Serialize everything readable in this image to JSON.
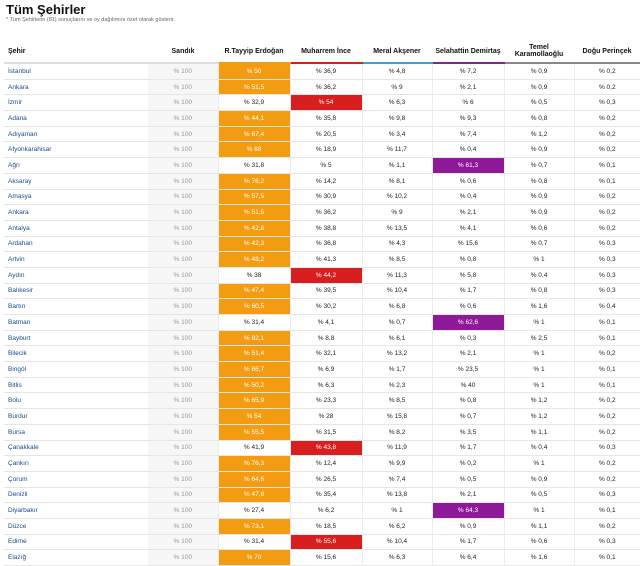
{
  "page": {
    "title": "Tüm Şehirler",
    "subtitle": "* Tüm Şehirlerin (81) sonuçlarını ve oy dağılımını özet olarak gösterir."
  },
  "columns": [
    "Şehir",
    "Sandık",
    "R.Tayyip Erdoğan",
    "Muharrem İnce",
    "Meral Akşener",
    "Selahattin Demirtaş",
    "Temel Karamollaoğlu",
    "Doğu Perinçek"
  ],
  "colors": {
    "erdogan": "#f39c12",
    "ince": "#d81e1e",
    "demirtas": "#8e1a9a",
    "aksener": "#37a3dc"
  },
  "rows": [
    {
      "city": "İstanbul",
      "sandik": "% 100",
      "rte": "% 50",
      "mi": "% 36,9",
      "ma": "% 4,8",
      "sd": "% 7,2",
      "tk": "% 0,9",
      "dp": "% 0,2",
      "win": "rte"
    },
    {
      "city": "Ankara",
      "sandik": "% 100",
      "rte": "% 51,5",
      "mi": "% 36,2",
      "ma": "% 9",
      "sd": "% 2,1",
      "tk": "% 0,9",
      "dp": "% 0,2",
      "win": "rte"
    },
    {
      "city": "İzmir",
      "sandik": "% 100",
      "rte": "% 32,9",
      "mi": "% 54",
      "ma": "% 6,3",
      "sd": "% 6",
      "tk": "% 0,5",
      "dp": "% 0,3",
      "win": "mi"
    },
    {
      "city": "Adana",
      "sandik": "% 100",
      "rte": "% 44,1",
      "mi": "% 35,8",
      "ma": "% 9,8",
      "sd": "% 9,3",
      "tk": "% 0,8",
      "dp": "% 0,2",
      "win": "rte"
    },
    {
      "city": "Adıyaman",
      "sandik": "% 100",
      "rte": "% 67,4",
      "mi": "% 20,5",
      "ma": "% 3,4",
      "sd": "% 7,4",
      "tk": "% 1,2",
      "dp": "% 0,2",
      "win": "rte"
    },
    {
      "city": "Afyonkarahisar",
      "sandik": "% 100",
      "rte": "% 68",
      "mi": "% 18,9",
      "ma": "% 11,7",
      "sd": "% 0,4",
      "tk": "% 0,9",
      "dp": "% 0,2",
      "win": "rte"
    },
    {
      "city": "Ağrı",
      "sandik": "% 100",
      "rte": "% 31,8",
      "mi": "% 5",
      "ma": "% 1,1",
      "sd": "% 61,3",
      "tk": "% 0,7",
      "dp": "% 0,1",
      "win": "sd"
    },
    {
      "city": "Aksaray",
      "sandik": "% 100",
      "rte": "% 76,2",
      "mi": "% 14,2",
      "ma": "% 8,1",
      "sd": "% 0,6",
      "tk": "% 0,8",
      "dp": "% 0,1",
      "win": "rte"
    },
    {
      "city": "Amasya",
      "sandik": "% 100",
      "rte": "% 57,5",
      "mi": "% 30,9",
      "ma": "% 10,2",
      "sd": "% 0,4",
      "tk": "% 0,9",
      "dp": "% 0,2",
      "win": "rte"
    },
    {
      "city": "Ankara",
      "sandik": "% 100",
      "rte": "% 51,5",
      "mi": "% 36,2",
      "ma": "% 9",
      "sd": "% 2,1",
      "tk": "% 0,9",
      "dp": "% 0,2",
      "win": "rte"
    },
    {
      "city": "Antalya",
      "sandik": "% 100",
      "rte": "% 42,8",
      "mi": "% 38,8",
      "ma": "% 13,5",
      "sd": "% 4,1",
      "tk": "% 0,6",
      "dp": "% 0,2",
      "win": "rte"
    },
    {
      "city": "Ardahan",
      "sandik": "% 100",
      "rte": "% 42,3",
      "mi": "% 36,8",
      "ma": "% 4,3",
      "sd": "% 15,6",
      "tk": "% 0,7",
      "dp": "% 0,3",
      "win": "rte"
    },
    {
      "city": "Artvin",
      "sandik": "% 100",
      "rte": "% 48,2",
      "mi": "% 41,3",
      "ma": "% 8,5",
      "sd": "% 0,8",
      "tk": "% 1",
      "dp": "% 0,3",
      "win": "rte"
    },
    {
      "city": "Aydın",
      "sandik": "% 100",
      "rte": "% 38",
      "mi": "% 44,2",
      "ma": "% 11,3",
      "sd": "% 5,8",
      "tk": "% 0,4",
      "dp": "% 0,3",
      "win": "mi"
    },
    {
      "city": "Balıkesir",
      "sandik": "% 100",
      "rte": "% 47,4",
      "mi": "% 39,5",
      "ma": "% 10,4",
      "sd": "% 1,7",
      "tk": "% 0,8",
      "dp": "% 0,3",
      "win": "rte"
    },
    {
      "city": "Bartın",
      "sandik": "% 100",
      "rte": "% 60,5",
      "mi": "% 30,2",
      "ma": "% 6,8",
      "sd": "% 0,6",
      "tk": "% 1,6",
      "dp": "% 0,4",
      "win": "rte"
    },
    {
      "city": "Batman",
      "sandik": "% 100",
      "rte": "% 31,4",
      "mi": "% 4,1",
      "ma": "% 0,7",
      "sd": "% 62,6",
      "tk": "% 1",
      "dp": "% 0,1",
      "win": "sd"
    },
    {
      "city": "Bayburt",
      "sandik": "% 100",
      "rte": "% 82,1",
      "mi": "% 8,8",
      "ma": "% 6,1",
      "sd": "% 0,3",
      "tk": "% 2,5",
      "dp": "% 0,1",
      "win": "rte"
    },
    {
      "city": "Bilecik",
      "sandik": "% 100",
      "rte": "% 51,4",
      "mi": "% 32,1",
      "ma": "% 13,2",
      "sd": "% 2,1",
      "tk": "% 1",
      "dp": "% 0,2",
      "win": "rte"
    },
    {
      "city": "Bingöl",
      "sandik": "% 100",
      "rte": "% 66,7",
      "mi": "% 6,9",
      "ma": "% 1,7",
      "sd": "% 23,5",
      "tk": "% 1",
      "dp": "% 0,1",
      "win": "rte"
    },
    {
      "city": "Bitlis",
      "sandik": "% 100",
      "rte": "% 50,2",
      "mi": "% 6,3",
      "ma": "% 2,3",
      "sd": "% 40",
      "tk": "% 1",
      "dp": "% 0,1",
      "win": "rte"
    },
    {
      "city": "Bolu",
      "sandik": "% 100",
      "rte": "% 65,9",
      "mi": "% 23,3",
      "ma": "% 8,5",
      "sd": "% 0,8",
      "tk": "% 1,2",
      "dp": "% 0,2",
      "win": "rte"
    },
    {
      "city": "Burdur",
      "sandik": "% 100",
      "rte": "% 54",
      "mi": "% 28",
      "ma": "% 15,8",
      "sd": "% 0,7",
      "tk": "% 1,2",
      "dp": "% 0,2",
      "win": "rte"
    },
    {
      "city": "Bursa",
      "sandik": "% 100",
      "rte": "% 55,5",
      "mi": "% 31,5",
      "ma": "% 8,2",
      "sd": "% 3,5",
      "tk": "% 1,1",
      "dp": "% 0,2",
      "win": "rte"
    },
    {
      "city": "Çanakkale",
      "sandik": "% 100",
      "rte": "% 41,9",
      "mi": "% 43,8",
      "ma": "% 11,9",
      "sd": "% 1,7",
      "tk": "% 0,4",
      "dp": "% 0,3",
      "win": "mi"
    },
    {
      "city": "Çankırı",
      "sandik": "% 100",
      "rte": "% 76,3",
      "mi": "% 12,4",
      "ma": "% 9,9",
      "sd": "% 0,2",
      "tk": "% 1",
      "dp": "% 0,2",
      "win": "rte"
    },
    {
      "city": "Çorum",
      "sandik": "% 100",
      "rte": "% 64,6",
      "mi": "% 26,5",
      "ma": "% 7,4",
      "sd": "% 0,5",
      "tk": "% 0,9",
      "dp": "% 0,2",
      "win": "rte"
    },
    {
      "city": "Denizli",
      "sandik": "% 100",
      "rte": "% 47,8",
      "mi": "% 35,4",
      "ma": "% 13,8",
      "sd": "% 2,1",
      "tk": "% 0,5",
      "dp": "% 0,3",
      "win": "rte"
    },
    {
      "city": "Diyarbakır",
      "sandik": "% 100",
      "rte": "% 27,4",
      "mi": "% 6,2",
      "ma": "% 1",
      "sd": "% 64,3",
      "tk": "% 1",
      "dp": "% 0,1",
      "win": "sd"
    },
    {
      "city": "Düzce",
      "sandik": "% 100",
      "rte": "% 73,1",
      "mi": "% 18,5",
      "ma": "% 6,2",
      "sd": "% 0,9",
      "tk": "% 1,1",
      "dp": "% 0,2",
      "win": "rte"
    },
    {
      "city": "Edirne",
      "sandik": "% 100",
      "rte": "% 31,4",
      "mi": "% 55,6",
      "ma": "% 10,4",
      "sd": "% 1,7",
      "tk": "% 0,6",
      "dp": "% 0,3",
      "win": "mi"
    },
    {
      "city": "Elazığ",
      "sandik": "% 100",
      "rte": "% 70",
      "mi": "% 15,6",
      "ma": "% 6,3",
      "sd": "% 6,4",
      "tk": "% 1,6",
      "dp": "% 0,1",
      "win": "rte"
    }
  ]
}
